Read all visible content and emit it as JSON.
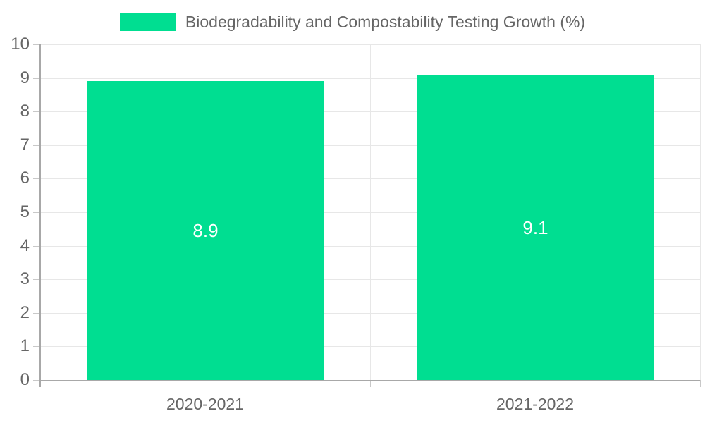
{
  "chart_data": {
    "type": "bar",
    "title": "Biodegradability and Compostability Testing Growth (%)",
    "categories": [
      "2020-2021",
      "2021-2022"
    ],
    "values": [
      8.9,
      9.1
    ],
    "data_labels": [
      "8.9",
      "9.1"
    ],
    "xlabel": "",
    "ylabel": "",
    "ylim": [
      0,
      10
    ],
    "ytick_step": 1,
    "grid": true,
    "legend_position": "top-center",
    "bar_color": "#00de91",
    "data_label_color": "#ffffff",
    "axis_text_color": "#666666",
    "gridline_color": "#e7e7e7",
    "axis_line_color": "#a8a8a8",
    "tick_mark_color": "#c8c8c8",
    "background_color": "#ffffff"
  }
}
